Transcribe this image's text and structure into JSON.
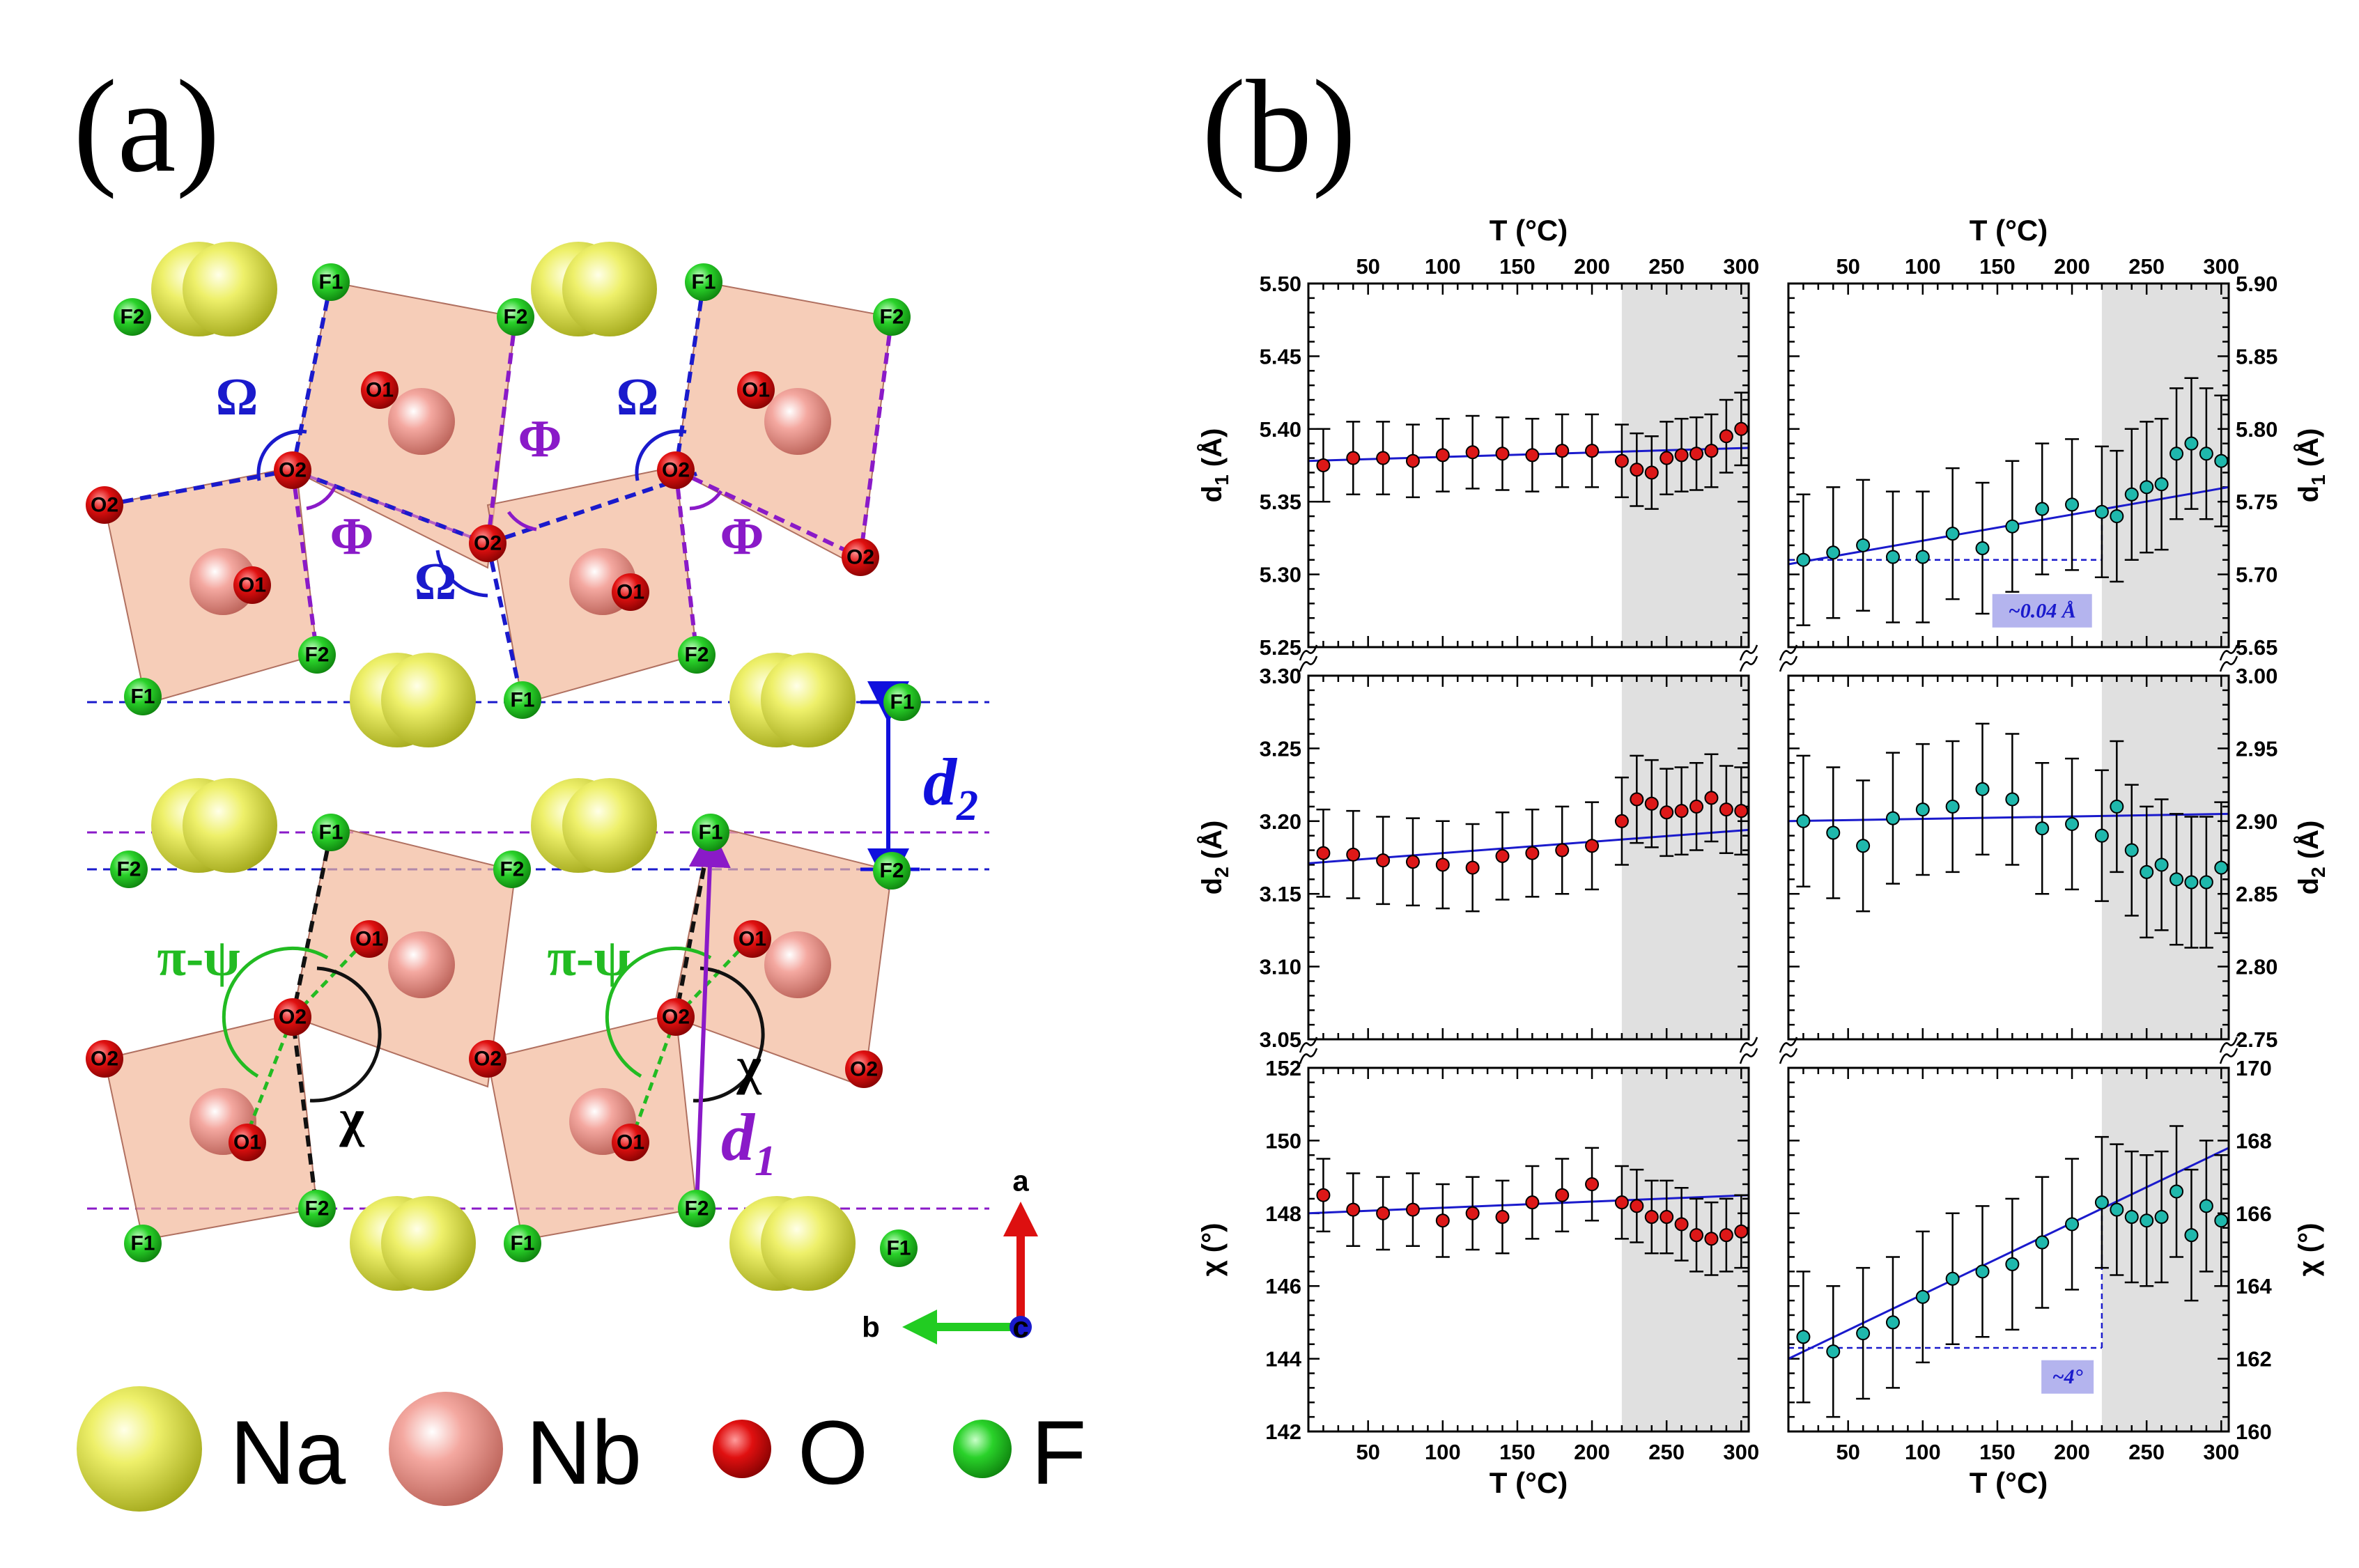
{
  "panels": {
    "a": "(a)",
    "b": "(b)"
  },
  "structure": {
    "angle_labels": {
      "omega": "Ω",
      "phi": "Φ",
      "pi_psi": "π-ψ",
      "chi": "χ"
    },
    "distance_labels": {
      "d1_main": "d",
      "d1_sub": "1",
      "d2_main": "d",
      "d2_sub": "2"
    },
    "axes": {
      "a": "a",
      "b": "b",
      "c": "c"
    },
    "atoms": [
      "F1",
      "F2",
      "O1",
      "O2"
    ]
  },
  "legend": [
    {
      "label": "Na",
      "color": "#e6ea3c"
    },
    {
      "label": "Nb",
      "color": "#f09a90"
    },
    {
      "label": "O",
      "color": "#e01010"
    },
    {
      "label": "F",
      "color": "#2ad22a"
    }
  ],
  "chart_data": [
    {
      "type": "scatter",
      "panel": "d1-left",
      "xlabel": "T (°C)",
      "ylabel": "d1 (Å)",
      "ylabel_main": "d",
      "ylabel_sub": "1",
      "ylabel_unit": " (Å)",
      "xlim": [
        10,
        305
      ],
      "ylim": [
        5.25,
        5.5
      ],
      "yticks": [
        "5.25",
        "5.30",
        "5.35",
        "5.40",
        "5.45",
        "5.50"
      ],
      "xticks": [
        "50",
        "100",
        "150",
        "200",
        "250",
        "300"
      ],
      "x": [
        20,
        40,
        60,
        80,
        100,
        120,
        140,
        160,
        180,
        200,
        220,
        230,
        240,
        250,
        260,
        270,
        280,
        290,
        300
      ],
      "y": [
        5.375,
        5.38,
        5.38,
        5.378,
        5.382,
        5.384,
        5.383,
        5.382,
        5.385,
        5.385,
        5.378,
        5.372,
        5.37,
        5.38,
        5.382,
        5.383,
        5.385,
        5.395,
        5.4
      ],
      "err": 0.025,
      "fit": [
        [
          10,
          5.378
        ],
        [
          305,
          5.387
        ]
      ],
      "shade": [
        220,
        305
      ],
      "color": "#dd1818"
    },
    {
      "type": "scatter",
      "panel": "d1-right",
      "xlabel": "T (°C)",
      "ylabel": "d1 (Å)",
      "ylabel_main": "d",
      "ylabel_sub": "1",
      "ylabel_unit": " (Å)",
      "xlim": [
        10,
        305
      ],
      "ylim": [
        5.65,
        5.9
      ],
      "yticks": [
        "5.65",
        "5.70",
        "5.75",
        "5.80",
        "5.85",
        "5.90"
      ],
      "xticks": [
        "50",
        "100",
        "150",
        "200",
        "250",
        "300"
      ],
      "x": [
        20,
        40,
        60,
        80,
        100,
        120,
        140,
        160,
        180,
        200,
        220,
        230,
        240,
        250,
        260,
        270,
        280,
        290,
        300
      ],
      "y": [
        5.71,
        5.715,
        5.72,
        5.712,
        5.712,
        5.728,
        5.718,
        5.733,
        5.745,
        5.748,
        5.743,
        5.74,
        5.755,
        5.76,
        5.762,
        5.783,
        5.79,
        5.783,
        5.778
      ],
      "err": 0.045,
      "fit": [
        [
          10,
          5.707
        ],
        [
          305,
          5.76
        ]
      ],
      "shade": [
        220,
        305
      ],
      "color": "#1fb8ac",
      "guide": {
        "y": 5.71,
        "x_from": 10,
        "x_to": 220,
        "y_to": 5.743
      },
      "note": "~0.04 Å",
      "note_x": 180,
      "note_y": 5.675
    },
    {
      "type": "scatter",
      "panel": "d2-left",
      "xlabel": "T (°C)",
      "ylabel": "d2 (Å)",
      "ylabel_main": "d",
      "ylabel_sub": "2",
      "ylabel_unit": " (Å)",
      "xlim": [
        10,
        305
      ],
      "ylim": [
        3.05,
        3.3
      ],
      "yticks": [
        "3.05",
        "3.10",
        "3.15",
        "3.20",
        "3.25",
        "3.30"
      ],
      "xticks": [
        "50",
        "100",
        "150",
        "200",
        "250",
        "300"
      ],
      "x": [
        20,
        40,
        60,
        80,
        100,
        120,
        140,
        160,
        180,
        200,
        220,
        230,
        240,
        250,
        260,
        270,
        280,
        290,
        300
      ],
      "y": [
        3.178,
        3.177,
        3.173,
        3.172,
        3.17,
        3.168,
        3.176,
        3.178,
        3.18,
        3.183,
        3.2,
        3.215,
        3.212,
        3.206,
        3.207,
        3.21,
        3.216,
        3.208,
        3.207
      ],
      "err": 0.03,
      "fit": [
        [
          10,
          3.171
        ],
        [
          305,
          3.194
        ]
      ],
      "shade": [
        220,
        305
      ],
      "color": "#dd1818"
    },
    {
      "type": "scatter",
      "panel": "d2-right",
      "xlabel": "T (°C)",
      "ylabel": "d2 (Å)",
      "ylabel_main": "d",
      "ylabel_sub": "2",
      "ylabel_unit": " (Å)",
      "xlim": [
        10,
        305
      ],
      "ylim": [
        2.75,
        3.0
      ],
      "yticks": [
        "2.75",
        "2.80",
        "2.85",
        "2.90",
        "2.95",
        "3.00"
      ],
      "xticks": [
        "50",
        "100",
        "150",
        "200",
        "250",
        "300"
      ],
      "x": [
        20,
        40,
        60,
        80,
        100,
        120,
        140,
        160,
        180,
        200,
        220,
        230,
        240,
        250,
        260,
        270,
        280,
        290,
        300
      ],
      "y": [
        2.9,
        2.892,
        2.883,
        2.902,
        2.908,
        2.91,
        2.922,
        2.915,
        2.895,
        2.898,
        2.89,
        2.91,
        2.88,
        2.865,
        2.87,
        2.86,
        2.858,
        2.858,
        2.868
      ],
      "err": 0.045,
      "fit": [
        [
          10,
          2.9
        ],
        [
          305,
          2.905
        ]
      ],
      "shade": [
        220,
        305
      ],
      "color": "#1fb8ac"
    },
    {
      "type": "scatter",
      "panel": "chi-left",
      "xlabel": "T (°C)",
      "ylabel": "χ (°)",
      "ylabel_main": "χ",
      "ylabel_sub": "",
      "ylabel_unit": " (°)",
      "xlim": [
        10,
        305
      ],
      "ylim": [
        142,
        152
      ],
      "yticks": [
        "142",
        "144",
        "146",
        "148",
        "150",
        "152"
      ],
      "xticks": [
        "50",
        "100",
        "150",
        "200",
        "250",
        "300"
      ],
      "x": [
        20,
        40,
        60,
        80,
        100,
        120,
        140,
        160,
        180,
        200,
        220,
        230,
        240,
        250,
        260,
        270,
        280,
        290,
        300
      ],
      "y": [
        148.5,
        148.1,
        148.0,
        148.1,
        147.8,
        148.0,
        147.9,
        148.3,
        148.5,
        148.8,
        148.3,
        148.2,
        147.9,
        147.9,
        147.7,
        147.4,
        147.3,
        147.4,
        147.5
      ],
      "err": 1.0,
      "fit": [
        [
          10,
          148.0
        ],
        [
          305,
          148.5
        ]
      ],
      "shade": [
        220,
        305
      ],
      "color": "#dd1818"
    },
    {
      "type": "scatter",
      "panel": "chi-right",
      "xlabel": "T (°C)",
      "ylabel": "χ (°)",
      "ylabel_main": "χ",
      "ylabel_sub": "",
      "ylabel_unit": " (°)",
      "xlim": [
        10,
        305
      ],
      "ylim": [
        160,
        170
      ],
      "yticks": [
        "160",
        "162",
        "164",
        "166",
        "168",
        "170"
      ],
      "xticks": [
        "50",
        "100",
        "150",
        "200",
        "250",
        "300"
      ],
      "x": [
        20,
        40,
        60,
        80,
        100,
        120,
        140,
        160,
        180,
        200,
        220,
        230,
        240,
        250,
        260,
        270,
        280,
        290,
        300
      ],
      "y": [
        162.6,
        162.2,
        162.7,
        163.0,
        163.7,
        164.2,
        164.4,
        164.6,
        165.2,
        165.7,
        166.3,
        166.1,
        165.9,
        165.8,
        165.9,
        166.6,
        165.4,
        166.2,
        165.8
      ],
      "err": 1.8,
      "fit": [
        [
          10,
          162.0
        ],
        [
          305,
          167.8
        ]
      ],
      "shade": [
        220,
        305
      ],
      "color": "#1fb8ac",
      "guide": {
        "y": 162.3,
        "x_from": 10,
        "x_to": 220,
        "y_to": 166.3
      },
      "note": "~4°",
      "note_x": 197,
      "note_y": 161.5
    }
  ]
}
